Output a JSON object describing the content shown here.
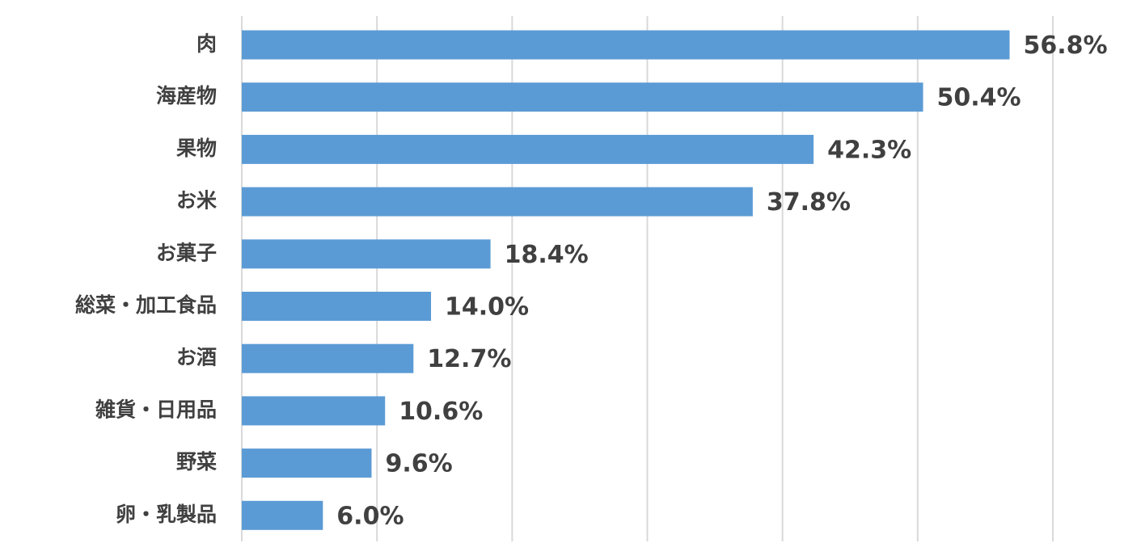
{
  "chart_data": {
    "type": "bar",
    "orientation": "horizontal",
    "categories": [
      "肉",
      "海産物",
      "果物",
      "お米",
      "お菓子",
      "総菜・加工食品",
      "お酒",
      "雑貨・日用品",
      "野菜",
      "卵・乳製品"
    ],
    "values": [
      56.8,
      50.4,
      42.3,
      37.8,
      18.4,
      14.0,
      12.7,
      10.6,
      9.6,
      6.0
    ],
    "value_labels": [
      "56.8%",
      "50.4%",
      "42.3%",
      "37.8%",
      "18.4%",
      "14.0%",
      "12.7%",
      "10.6%",
      "9.6%",
      "6.0%"
    ],
    "xlim": [
      0,
      60
    ],
    "grid": true,
    "legend": "none",
    "colors": {
      "bar": "#5b9bd5",
      "text": "#404040",
      "grid": "#d9d9d9"
    }
  }
}
